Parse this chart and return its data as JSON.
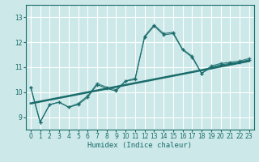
{
  "title": "",
  "xlabel": "Humidex (Indice chaleur)",
  "xlim": [
    -0.5,
    23.5
  ],
  "ylim": [
    8.5,
    13.5
  ],
  "yticks": [
    9,
    10,
    11,
    12,
    13
  ],
  "xticks": [
    0,
    1,
    2,
    3,
    4,
    5,
    6,
    7,
    8,
    9,
    10,
    11,
    12,
    13,
    14,
    15,
    16,
    17,
    18,
    19,
    20,
    21,
    22,
    23
  ],
  "bg_color": "#cce8e8",
  "line_color": "#1a6b6b",
  "grid_color": "#ffffff",
  "series1_x": [
    0,
    1,
    2,
    3,
    4,
    5,
    6,
    7,
    8,
    9,
    10,
    11,
    12,
    13,
    14,
    15,
    16,
    17,
    18,
    19,
    20,
    21,
    22,
    23
  ],
  "series1_y": [
    10.2,
    8.8,
    9.5,
    9.6,
    9.4,
    9.5,
    9.8,
    10.3,
    10.15,
    10.05,
    10.45,
    10.55,
    12.2,
    12.65,
    12.3,
    12.35,
    11.7,
    11.4,
    10.75,
    11.0,
    11.1,
    11.15,
    11.2,
    11.3
  ],
  "series2_x": [
    0,
    1,
    2,
    3,
    4,
    5,
    6,
    7,
    8,
    9,
    10,
    11,
    12,
    13,
    14,
    15,
    16,
    17,
    18,
    19,
    20,
    21,
    22,
    23
  ],
  "series2_y": [
    10.2,
    8.8,
    9.5,
    9.6,
    9.4,
    9.55,
    9.85,
    10.35,
    10.2,
    10.1,
    10.45,
    10.5,
    12.25,
    12.7,
    12.35,
    12.4,
    11.72,
    11.45,
    10.75,
    11.05,
    11.15,
    11.2,
    11.25,
    11.35
  ],
  "trend_x": [
    0,
    23
  ],
  "trend_y": [
    9.55,
    11.25
  ],
  "tick_fontsize": 5.5,
  "xlabel_fontsize": 6.5,
  "marker_size": 3.0,
  "linewidth": 0.8
}
